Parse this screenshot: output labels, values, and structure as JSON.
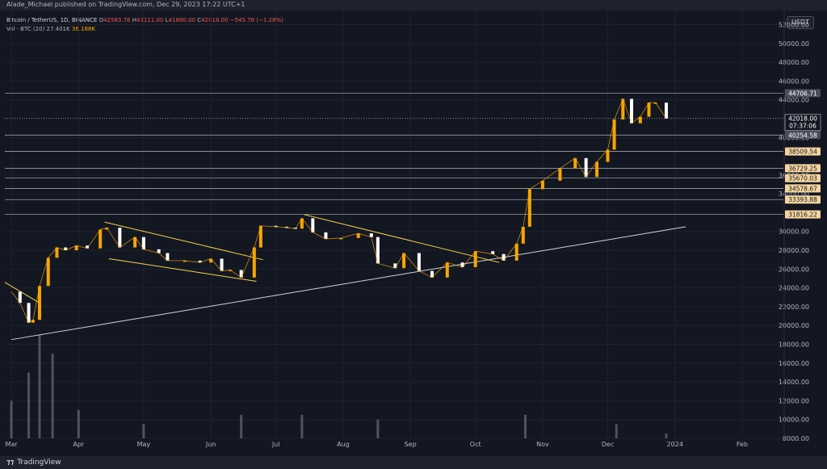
{
  "header": {
    "publish_text": "Alade_Michael published on TradingView.com, Dec 29, 2023 17:22 UTC+1"
  },
  "legend": {
    "symbol": "Bitcoin / TetherUS, 1D, BINANCE",
    "o_label": "O",
    "o_value": "42563.76",
    "h_label": "H",
    "h_value": "43111.00",
    "l_label": "L",
    "l_value": "41880.00",
    "c_label": "C",
    "c_value": "42018.00",
    "change": "−545.76 (−1.28%)",
    "volume_label": "Vol · BTC (20)",
    "volume_value": "27.401K",
    "volume_ma": "36.188K"
  },
  "currency_button": "USDT",
  "footer": {
    "brand": "TradingView"
  },
  "colors": {
    "background": "#131722",
    "candle_up": "#f7a600",
    "candle_down": "#ffffff",
    "volume": "#787b86",
    "trendline_yellow": "#f7d348",
    "trendline_white": "#d1d4dc",
    "level_line": "#b2b5be",
    "grid": "#1e222d"
  },
  "chart_data": {
    "type": "line",
    "title": "Bitcoin / TetherUS, 1D, BINANCE",
    "x_ticks": [
      "Mar",
      "Apr",
      "May",
      "Jun",
      "Jul",
      "Aug",
      "Sep",
      "Oct",
      "Nov",
      "Dec",
      "2024",
      "Feb"
    ],
    "y_ticks": [
      8000,
      10000,
      12000,
      14000,
      16000,
      18000,
      20000,
      22000,
      24000,
      26000,
      28000,
      30000,
      34000,
      36000,
      40000,
      44000,
      46000,
      48000,
      50000,
      52000
    ],
    "ylim": [
      8000,
      53500
    ],
    "series": [
      {
        "x": [
          "2023-03-01",
          "2023-03-05",
          "2023-03-09",
          "2023-03-11",
          "2023-03-14",
          "2023-03-18",
          "2023-03-22",
          "2023-03-26",
          "2023-03-31",
          "2023-04-05",
          "2023-04-11",
          "2023-04-14",
          "2023-04-20",
          "2023-04-27",
          "2023-05-01",
          "2023-05-08",
          "2023-05-12",
          "2023-05-20",
          "2023-05-27",
          "2023-06-01",
          "2023-06-06",
          "2023-06-10",
          "2023-06-15",
          "2023-06-21",
          "2023-06-24",
          "2023-07-01",
          "2023-07-06",
          "2023-07-10",
          "2023-07-13",
          "2023-07-18",
          "2023-07-24",
          "2023-07-31",
          "2023-08-08",
          "2023-08-14",
          "2023-08-17",
          "2023-08-25",
          "2023-08-29",
          "2023-09-05",
          "2023-09-11",
          "2023-09-18",
          "2023-09-25",
          "2023-10-01",
          "2023-10-09",
          "2023-10-14",
          "2023-10-20",
          "2023-10-23",
          "2023-10-26",
          "2023-11-01",
          "2023-11-09",
          "2023-11-16",
          "2023-11-21",
          "2023-11-26",
          "2023-12-01",
          "2023-12-04",
          "2023-12-08",
          "2023-12-12",
          "2023-12-16",
          "2023-12-20",
          "2023-12-23",
          "2023-12-28"
        ],
        "values": [
          23600,
          22400,
          20300,
          20600,
          24200,
          27200,
          28300,
          28000,
          28500,
          28200,
          30200,
          30400,
          28300,
          29400,
          28100,
          27700,
          26900,
          26900,
          26700,
          27100,
          25800,
          25900,
          25100,
          28300,
          30600,
          30500,
          30400,
          30300,
          31400,
          29900,
          29200,
          29300,
          29800,
          29400,
          26600,
          26100,
          27700,
          25800,
          25100,
          26700,
          26200,
          27900,
          27600,
          26900,
          28700,
          30500,
          34500,
          35400,
          36700,
          37800,
          35800,
          37400,
          38700,
          41900,
          44100,
          41500,
          42200,
          43700,
          43700,
          42018
        ]
      }
    ],
    "volume_series": {
      "x": [
        "2023-03-01",
        "2023-03-09",
        "2023-03-14",
        "2023-03-20",
        "2023-04-01",
        "2023-05-01",
        "2023-06-15",
        "2023-07-13",
        "2023-08-17",
        "2023-10-24",
        "2023-12-05",
        "2023-12-28"
      ],
      "values": [
        12000,
        15000,
        19000,
        17000,
        11000,
        9500,
        10500,
        10500,
        10000,
        10500,
        9500,
        8500
      ]
    },
    "trendlines": [
      {
        "x1": "2023-03-01",
        "y1": 18500,
        "x2": "2024-01-06",
        "y2": 30500
      },
      {
        "x1": "2023-04-13",
        "y1": 31000,
        "x2": "2023-06-25",
        "y2": 27000
      },
      {
        "x1": "2023-04-15",
        "y1": 27100,
        "x2": "2023-06-22",
        "y2": 24700
      },
      {
        "x1": "2023-02-26",
        "y1": 24600,
        "x2": "2023-03-14",
        "y2": 22400
      },
      {
        "x1": "2023-07-14",
        "y1": 31800,
        "x2": "2023-10-12",
        "y2": 26700
      }
    ],
    "levels": [
      {
        "value": 44706.71,
        "label": "44706.71"
      },
      {
        "value": 40254.58,
        "label": "40254.58"
      },
      {
        "value": 38509.54,
        "label": "38509.54"
      },
      {
        "value": 36729.25,
        "label": "36729.25"
      },
      {
        "value": 35670.03,
        "label": "35670.03"
      },
      {
        "value": 34578.67,
        "label": "34578.67"
      },
      {
        "value": 33393.88,
        "label": "33393.88"
      },
      {
        "value": 31816.22,
        "label": "31816.22"
      }
    ],
    "last_price": {
      "value": 42018,
      "label": "42018.00",
      "countdown": "07:37:06"
    }
  }
}
